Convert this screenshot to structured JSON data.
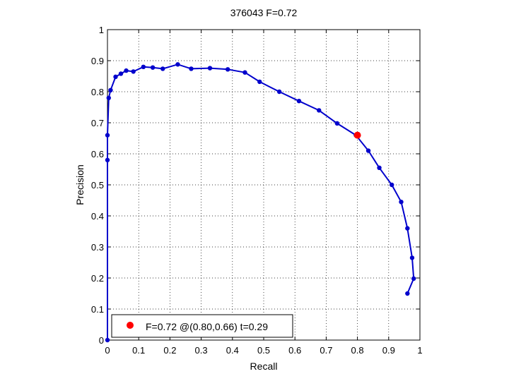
{
  "chart_data": {
    "type": "line",
    "title": "376043 F=0.72",
    "xlabel": "Recall",
    "ylabel": "Precision",
    "xlim": [
      0,
      1
    ],
    "ylim": [
      0,
      1
    ],
    "xticks": [
      "0",
      "0.1",
      "0.2",
      "0.3",
      "0.4",
      "0.5",
      "0.6",
      "0.7",
      "0.8",
      "0.9",
      "1"
    ],
    "yticks": [
      "0",
      "0.1",
      "0.2",
      "0.3",
      "0.4",
      "0.5",
      "0.6",
      "0.7",
      "0.8",
      "0.9",
      "1"
    ],
    "grid": true,
    "legend_position": "bottom-left",
    "series": [
      {
        "color": "#0000cc",
        "x": [
          0.0,
          0.0,
          0.0,
          0.004,
          0.01,
          0.026,
          0.043,
          0.06,
          0.083,
          0.115,
          0.145,
          0.177,
          0.225,
          0.268,
          0.328,
          0.385,
          0.44,
          0.487,
          0.55,
          0.613,
          0.677,
          0.735,
          0.795,
          0.835,
          0.87,
          0.91,
          0.94,
          0.96,
          0.975,
          0.98,
          0.96
        ],
        "y": [
          0.0,
          0.58,
          0.66,
          0.78,
          0.805,
          0.848,
          0.858,
          0.868,
          0.865,
          0.88,
          0.878,
          0.874,
          0.888,
          0.874,
          0.876,
          0.872,
          0.862,
          0.832,
          0.8,
          0.77,
          0.74,
          0.698,
          0.66,
          0.61,
          0.555,
          0.5,
          0.445,
          0.36,
          0.265,
          0.198,
          0.15
        ]
      }
    ],
    "highlight": {
      "x": 0.8,
      "y": 0.66,
      "color": "#ff0000"
    },
    "legend": {
      "text": "F=0.72 @(0.80,0.66) t=0.29"
    }
  }
}
